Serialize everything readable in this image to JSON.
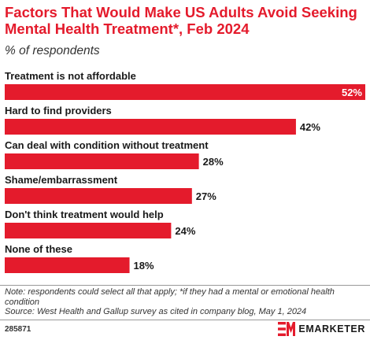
{
  "header": {
    "title": "Factors That Would Make US Adults Avoid Seeking Mental Health Treatment*, Feb 2024",
    "subtitle": "% of respondents"
  },
  "chart_data": {
    "type": "bar",
    "orientation": "horizontal",
    "categories": [
      "Treatment is not affordable",
      "Hard to find providers",
      "Can deal with condition without treatment",
      "Shame/embarrassment",
      "Don't think treatment would help",
      "None of these"
    ],
    "values": [
      52,
      42,
      28,
      27,
      24,
      18
    ],
    "value_labels": [
      "52%",
      "42%",
      "28%",
      "27%",
      "24%",
      "18%"
    ],
    "xlim": [
      0,
      52
    ],
    "grid": false,
    "colors": {
      "bar": "#e41b2c",
      "value_inside": "#ffffff",
      "value_outside": "#1a1a1a"
    }
  },
  "footer": {
    "note": "Note: respondents could select all that apply; *if they had a mental or emotional health condition",
    "source": "Source: West Health and Gallup survey as cited in company blog, May 1, 2024",
    "chart_id": "285871",
    "brand": "EMARKETER"
  }
}
